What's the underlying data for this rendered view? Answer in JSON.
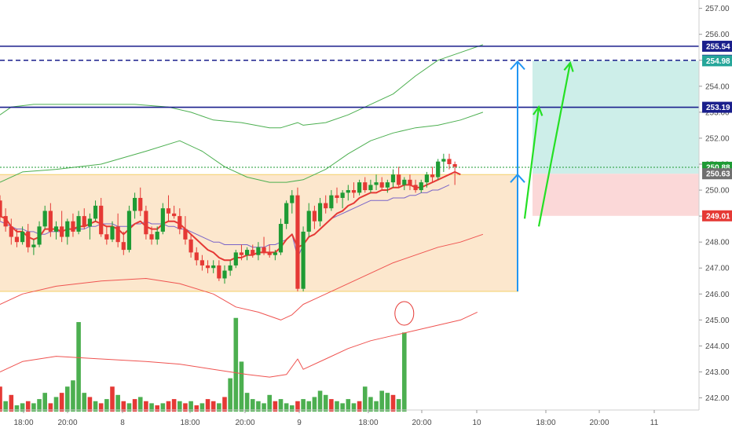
{
  "chart_data": {
    "type": "candlestick",
    "y_axis": {
      "position": "right",
      "range": [
        241.2,
        257.2
      ],
      "ticks": [
        "242.00",
        "243.00",
        "244.00",
        "245.00",
        "246.00",
        "247.00",
        "248.00",
        "249.00",
        "250.00",
        "251.00",
        "252.00",
        "253.00",
        "254.00",
        "255.00",
        "256.00",
        "257.00"
      ]
    },
    "x_axis": {
      "labels": [
        "18:00",
        "20:00",
        "8",
        "18:00",
        "20:00",
        "9",
        "18:00",
        "20:00",
        "10",
        "18:00",
        "20:00",
        "11"
      ]
    },
    "candles": [
      [
        249.6,
        249.8,
        248.8,
        249.0
      ],
      [
        249.0,
        249.3,
        248.4,
        248.6
      ],
      [
        248.6,
        248.9,
        247.9,
        248.2
      ],
      [
        248.2,
        248.5,
        247.8,
        248.0
      ],
      [
        248.0,
        248.6,
        247.9,
        248.4
      ],
      [
        248.4,
        248.7,
        247.6,
        247.8
      ],
      [
        247.8,
        248.1,
        247.5,
        247.9
      ],
      [
        247.9,
        248.8,
        247.8,
        248.6
      ],
      [
        248.6,
        249.4,
        248.5,
        249.2
      ],
      [
        249.2,
        249.5,
        248.2,
        248.4
      ],
      [
        248.4,
        248.8,
        248.1,
        248.6
      ],
      [
        248.6,
        249.2,
        248.0,
        248.2
      ],
      [
        248.2,
        248.9,
        247.9,
        248.8
      ],
      [
        248.8,
        249.1,
        248.2,
        248.4
      ],
      [
        248.4,
        249.2,
        248.3,
        249.0
      ],
      [
        249.0,
        249.3,
        248.5,
        248.6
      ],
      [
        248.6,
        249.1,
        248.1,
        248.9
      ],
      [
        248.9,
        249.6,
        248.8,
        249.4
      ],
      [
        249.4,
        249.7,
        248.2,
        248.3
      ],
      [
        248.3,
        248.6,
        247.9,
        248.1
      ],
      [
        248.1,
        248.8,
        248.0,
        248.6
      ],
      [
        248.6,
        249.1,
        247.8,
        248.0
      ],
      [
        248.0,
        248.4,
        247.5,
        247.7
      ],
      [
        247.7,
        249.4,
        247.6,
        249.2
      ],
      [
        249.2,
        249.9,
        248.9,
        249.7
      ],
      [
        249.7,
        250.1,
        249.0,
        249.2
      ],
      [
        249.2,
        249.4,
        248.1,
        248.3
      ],
      [
        248.3,
        248.6,
        247.9,
        248.1
      ],
      [
        248.1,
        248.6,
        247.9,
        248.4
      ],
      [
        248.4,
        249.5,
        248.3,
        249.3
      ],
      [
        249.3,
        249.8,
        248.8,
        249.1
      ],
      [
        249.1,
        249.4,
        248.9,
        249.0
      ],
      [
        249.0,
        249.3,
        248.3,
        248.5
      ],
      [
        248.5,
        249.0,
        247.9,
        248.1
      ],
      [
        248.1,
        248.3,
        247.4,
        247.6
      ],
      [
        247.6,
        247.8,
        247.1,
        247.3
      ],
      [
        247.3,
        247.5,
        246.9,
        247.1
      ],
      [
        247.1,
        247.3,
        246.8,
        247.0
      ],
      [
        247.0,
        247.3,
        246.8,
        247.1
      ],
      [
        247.1,
        247.3,
        246.5,
        246.6
      ],
      [
        246.6,
        247.1,
        246.4,
        246.9
      ],
      [
        246.9,
        247.3,
        246.7,
        247.1
      ],
      [
        247.1,
        247.7,
        247.0,
        247.6
      ],
      [
        247.6,
        247.9,
        247.3,
        247.5
      ],
      [
        247.5,
        247.8,
        247.3,
        247.7
      ],
      [
        247.7,
        247.9,
        247.4,
        247.5
      ],
      [
        247.5,
        248.0,
        247.3,
        247.8
      ],
      [
        247.8,
        248.2,
        247.5,
        247.6
      ],
      [
        247.6,
        247.9,
        247.4,
        247.5
      ],
      [
        247.5,
        247.7,
        247.3,
        247.6
      ],
      [
        247.6,
        248.9,
        247.5,
        248.7
      ],
      [
        248.7,
        249.6,
        248.5,
        249.5
      ],
      [
        249.5,
        250.0,
        249.1,
        249.8
      ],
      [
        249.8,
        250.1,
        246.1,
        246.2
      ],
      [
        246.2,
        248.6,
        246.1,
        248.4
      ],
      [
        248.4,
        249.5,
        248.2,
        249.2
      ],
      [
        249.2,
        249.4,
        248.5,
        248.8
      ],
      [
        248.8,
        249.7,
        248.6,
        249.5
      ],
      [
        249.5,
        249.8,
        249.1,
        249.3
      ],
      [
        249.3,
        250.0,
        249.2,
        249.8
      ],
      [
        249.8,
        250.1,
        249.5,
        249.7
      ],
      [
        249.7,
        250.0,
        249.3,
        249.9
      ],
      [
        249.9,
        250.2,
        249.6,
        250.0
      ],
      [
        250.0,
        250.3,
        249.7,
        249.9
      ],
      [
        249.9,
        250.4,
        249.8,
        250.3
      ],
      [
        250.3,
        250.5,
        249.9,
        250.0
      ],
      [
        250.0,
        250.4,
        249.9,
        250.2
      ],
      [
        250.2,
        250.6,
        250.0,
        250.3
      ],
      [
        250.3,
        250.5,
        250.0,
        250.1
      ],
      [
        250.1,
        250.4,
        249.9,
        250.3
      ],
      [
        250.3,
        250.8,
        250.1,
        250.6
      ],
      [
        250.6,
        250.9,
        250.1,
        250.2
      ],
      [
        250.2,
        250.5,
        250.0,
        250.4
      ],
      [
        250.4,
        250.6,
        250.0,
        250.2
      ],
      [
        250.2,
        250.4,
        249.9,
        250.0
      ],
      [
        250.0,
        250.4,
        249.9,
        250.3
      ],
      [
        250.3,
        250.7,
        250.1,
        250.6
      ],
      [
        250.6,
        250.9,
        250.3,
        250.5
      ],
      [
        250.5,
        251.2,
        250.4,
        251.1
      ],
      [
        251.1,
        251.4,
        250.7,
        251.2
      ],
      [
        251.2,
        251.4,
        250.8,
        251.0
      ],
      [
        251.0,
        251.1,
        250.2,
        250.9
      ]
    ],
    "volume": [
      [
        1.2,
        0
      ],
      [
        0.5,
        1
      ],
      [
        0.8,
        0
      ],
      [
        0.3,
        1
      ],
      [
        0.4,
        1
      ],
      [
        0.5,
        0
      ],
      [
        0.4,
        1
      ],
      [
        0.6,
        1
      ],
      [
        0.9,
        1
      ],
      [
        0.4,
        0
      ],
      [
        0.7,
        1
      ],
      [
        0.9,
        0
      ],
      [
        1.2,
        1
      ],
      [
        1.5,
        1
      ],
      [
        4.3,
        1
      ],
      [
        0.9,
        1
      ],
      [
        0.7,
        0
      ],
      [
        0.5,
        1
      ],
      [
        0.4,
        0
      ],
      [
        0.6,
        1
      ],
      [
        1.2,
        0
      ],
      [
        0.8,
        1
      ],
      [
        0.5,
        0
      ],
      [
        0.4,
        1
      ],
      [
        0.6,
        0
      ],
      [
        0.7,
        1
      ],
      [
        0.5,
        0
      ],
      [
        0.4,
        1
      ],
      [
        0.3,
        0
      ],
      [
        0.4,
        1
      ],
      [
        0.5,
        0
      ],
      [
        0.6,
        0
      ],
      [
        0.5,
        1
      ],
      [
        0.4,
        0
      ],
      [
        0.5,
        1
      ],
      [
        0.3,
        0
      ],
      [
        0.4,
        1
      ],
      [
        0.6,
        0
      ],
      [
        0.5,
        0
      ],
      [
        0.4,
        1
      ],
      [
        0.7,
        0
      ],
      [
        1.6,
        1
      ],
      [
        4.5,
        1
      ],
      [
        2.4,
        1
      ],
      [
        0.9,
        1
      ],
      [
        0.6,
        1
      ],
      [
        0.5,
        1
      ],
      [
        0.4,
        1
      ],
      [
        0.8,
        1
      ],
      [
        0.5,
        0
      ],
      [
        0.6,
        1
      ],
      [
        0.4,
        1
      ],
      [
        0.3,
        1
      ],
      [
        0.5,
        0
      ],
      [
        0.6,
        1
      ],
      [
        0.5,
        1
      ],
      [
        0.7,
        1
      ],
      [
        1.0,
        1
      ],
      [
        0.8,
        1
      ],
      [
        0.6,
        0
      ],
      [
        0.5,
        1
      ],
      [
        0.4,
        1
      ],
      [
        0.6,
        1
      ],
      [
        0.4,
        1
      ],
      [
        0.5,
        0
      ],
      [
        1.2,
        1
      ],
      [
        0.7,
        1
      ],
      [
        0.5,
        1
      ],
      [
        1.0,
        1
      ],
      [
        0.9,
        1
      ],
      [
        0.8,
        0
      ],
      [
        0.6,
        1
      ],
      [
        3.8,
        1
      ]
    ],
    "sma": [
      248.8,
      248.7,
      248.6,
      248.5,
      248.5,
      248.4,
      248.4,
      248.3,
      248.3,
      248.4,
      248.4,
      248.4,
      248.5,
      248.5,
      248.5,
      248.5,
      248.6,
      248.6,
      248.7,
      248.7,
      248.7,
      248.6,
      248.6,
      248.6,
      248.7,
      248.7,
      248.8,
      248.7,
      248.7,
      248.7,
      248.6,
      248.6,
      248.5,
      248.5,
      248.4,
      248.3,
      248.2,
      248.1,
      248.0,
      248.0,
      247.9,
      247.9,
      247.9,
      247.9,
      247.9,
      247.8,
      247.8,
      247.8,
      247.9,
      247.9,
      248.0,
      248.1,
      248.3,
      247.4,
      247.9,
      248.2,
      248.3,
      248.5,
      248.7,
      248.9,
      249.0,
      249.1,
      249.2,
      249.3,
      249.4,
      249.5,
      249.6,
      249.6,
      249.6,
      249.6,
      249.7,
      249.7,
      249.7,
      249.8,
      249.8,
      249.9,
      249.9,
      250.0,
      250.0,
      250.1,
      250.2
    ],
    "ema": [
      249.0,
      248.9,
      248.6,
      248.4,
      248.4,
      248.2,
      248.1,
      248.2,
      248.5,
      248.5,
      248.5,
      248.4,
      248.5,
      248.5,
      248.6,
      248.6,
      248.7,
      248.8,
      248.7,
      248.6,
      248.6,
      248.5,
      248.3,
      248.5,
      248.7,
      248.8,
      248.6,
      248.5,
      248.5,
      248.7,
      248.8,
      248.8,
      248.7,
      248.5,
      248.3,
      248.1,
      247.9,
      247.7,
      247.6,
      247.4,
      247.3,
      247.3,
      247.4,
      247.4,
      247.5,
      247.5,
      247.6,
      247.6,
      247.6,
      247.6,
      247.8,
      248.1,
      248.3,
      247.8,
      247.9,
      248.2,
      248.3,
      248.5,
      248.7,
      248.9,
      249.1,
      249.2,
      249.4,
      249.5,
      249.7,
      249.8,
      249.9,
      249.9,
      250.0,
      250.0,
      250.1,
      250.1,
      250.2,
      250.2,
      250.1,
      250.1,
      250.2,
      250.3,
      250.4,
      250.5,
      250.6,
      250.7,
      250.6
    ],
    "band_upper": [
      [
        0,
        252.9
      ],
      [
        2,
        253.2
      ],
      [
        6,
        253.3
      ],
      [
        12,
        253.3
      ],
      [
        18,
        253.3
      ],
      [
        24,
        253.3
      ],
      [
        30,
        253.2
      ],
      [
        34,
        253.0
      ],
      [
        38,
        252.7
      ],
      [
        43,
        252.6
      ],
      [
        48,
        252.4
      ],
      [
        50,
        252.4
      ],
      [
        53,
        252.6
      ],
      [
        54,
        252.5
      ],
      [
        58,
        252.6
      ],
      [
        62,
        252.9
      ],
      [
        66,
        253.3
      ],
      [
        70,
        253.7
      ],
      [
        74,
        254.4
      ],
      [
        78,
        255.0
      ],
      [
        82,
        255.3
      ],
      [
        86,
        255.6
      ]
    ],
    "band_mid": [
      [
        0,
        250.3
      ],
      [
        4,
        250.7
      ],
      [
        10,
        250.8
      ],
      [
        18,
        251.0
      ],
      [
        26,
        251.5
      ],
      [
        32,
        251.9
      ],
      [
        36,
        251.5
      ],
      [
        40,
        250.9
      ],
      [
        44,
        250.5
      ],
      [
        48,
        250.3
      ],
      [
        51,
        250.3
      ],
      [
        54,
        250.4
      ],
      [
        58,
        250.8
      ],
      [
        62,
        251.4
      ],
      [
        66,
        251.9
      ],
      [
        70,
        252.2
      ],
      [
        74,
        252.4
      ],
      [
        78,
        252.5
      ],
      [
        82,
        252.7
      ],
      [
        86,
        253.0
      ]
    ],
    "band_lower": [
      [
        0,
        245.6
      ],
      [
        4,
        246.0
      ],
      [
        10,
        246.3
      ],
      [
        18,
        246.5
      ],
      [
        26,
        246.6
      ],
      [
        32,
        246.4
      ],
      [
        38,
        246.0
      ],
      [
        42,
        245.5
      ],
      [
        46,
        245.3
      ],
      [
        50,
        245.0
      ],
      [
        52,
        245.2
      ],
      [
        54,
        245.6
      ],
      [
        58,
        246.0
      ],
      [
        62,
        246.4
      ],
      [
        66,
        246.8
      ],
      [
        70,
        247.2
      ],
      [
        74,
        247.5
      ],
      [
        78,
        247.8
      ],
      [
        82,
        248.0
      ],
      [
        86,
        248.3
      ]
    ],
    "volume_ma": [
      [
        0,
        243.0
      ],
      [
        4,
        243.4
      ],
      [
        10,
        243.6
      ],
      [
        18,
        243.5
      ],
      [
        26,
        243.4
      ],
      [
        32,
        243.3
      ],
      [
        38,
        243.1
      ],
      [
        44,
        242.9
      ],
      [
        48,
        242.8
      ],
      [
        51,
        242.9
      ],
      [
        53,
        243.5
      ],
      [
        54,
        243.1
      ],
      [
        58,
        243.5
      ],
      [
        62,
        243.9
      ],
      [
        66,
        244.2
      ],
      [
        70,
        244.4
      ],
      [
        74,
        244.6
      ],
      [
        78,
        244.8
      ],
      [
        82,
        245.0
      ],
      [
        85,
        245.3
      ]
    ],
    "levels": [
      {
        "value": 255.54,
        "label": "255.54",
        "style": "solid",
        "color": "#1a1f8c"
      },
      {
        "value": 255.0,
        "label": "255.00",
        "style": "dashed",
        "color": "#1a1f8c"
      },
      {
        "value": 254.98,
        "label": "254.98",
        "style": "badge",
        "color": "#26a69a"
      },
      {
        "value": 253.19,
        "label": "253.19",
        "style": "solid",
        "color": "#1a1f8c"
      },
      {
        "value": 250.88,
        "label": "250.88",
        "style": "dotted",
        "color": "#1e9b34"
      },
      {
        "value": 250.63,
        "label": "250.63",
        "style": "badge",
        "color": "#707070"
      },
      {
        "value": 249.01,
        "label": "249.01",
        "style": "badge",
        "color": "#e53935"
      }
    ],
    "range_box": {
      "from": 246.1,
      "to": 250.6
    },
    "measure_arrow": {
      "from": 246.1,
      "to": 254.95,
      "mid": 250.6
    },
    "position_tool": {
      "entry": 250.63,
      "target": 254.98,
      "stop": 249.01
    },
    "projection_arrows": [
      {
        "from": 248.9,
        "to": 253.2
      },
      {
        "from": 248.6,
        "to": 254.9
      }
    ],
    "colors": {
      "bull": "#1e9b34",
      "bear": "#e53935",
      "volume_bull": "#4caf50",
      "volume_bear": "#e53935",
      "sma": "#7a65c8",
      "ema": "#e53935",
      "band": "#4caf50",
      "band_lower": "#ef5350",
      "level": "#1a1f8c",
      "measure": "#2196f3",
      "projection": "#24e024",
      "range_fill": "#fce3c4",
      "range_border": "#f5d26b",
      "target_fill": "#cdeee9",
      "stop_fill": "#fbd8d8",
      "highlight": "#e53935"
    }
  }
}
